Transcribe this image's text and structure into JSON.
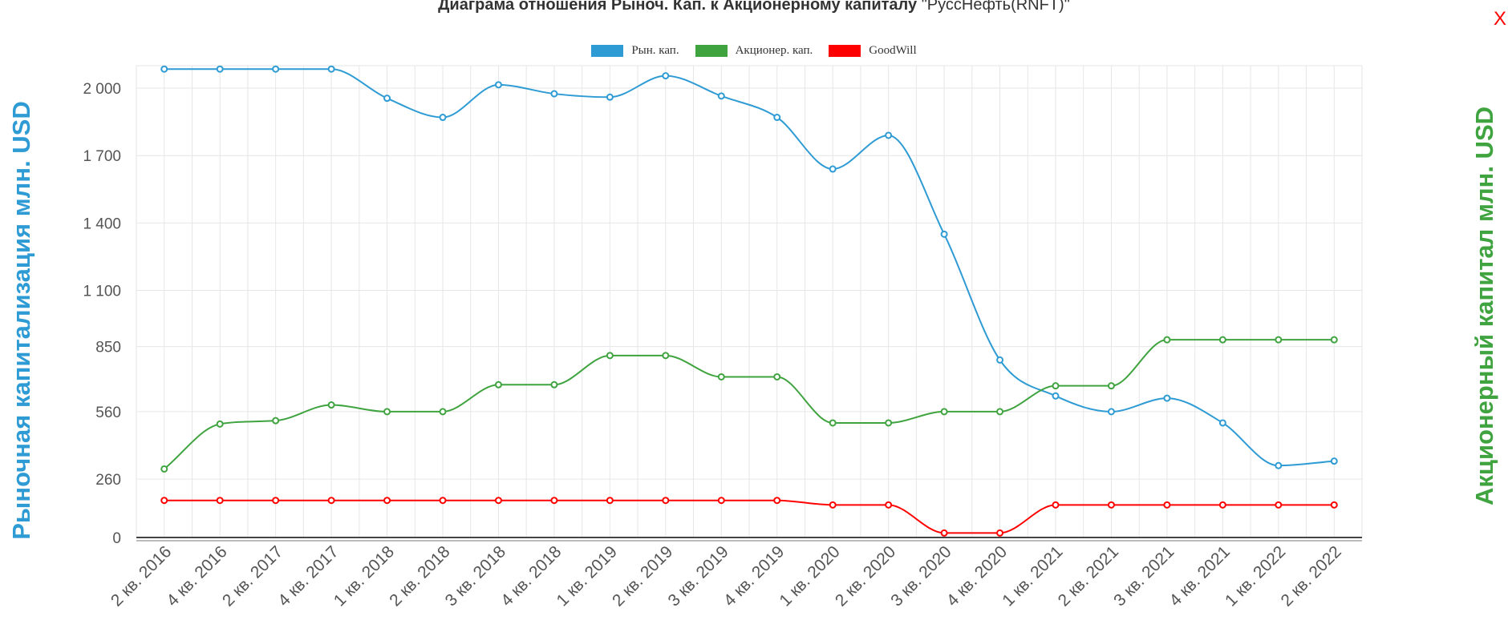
{
  "title": {
    "bold": "Диаграма отношения Рыноч. Кап. к Акционерному капиталу",
    "normal": "\"РуссНефть(RNFT)\""
  },
  "close_label": "X",
  "chart_data": {
    "type": "line",
    "x_labels": [
      "2 кв. 2016",
      "4 кв. 2016",
      "2 кв. 2017",
      "4 кв. 2017",
      "1 кв. 2018",
      "2 кв. 2018",
      "3 кв. 2018",
      "4 кв. 2018",
      "1 кв. 2019",
      "2 кв. 2019",
      "3 кв. 2019",
      "4 кв. 2019",
      "1 кв. 2020",
      "2 кв. 2020",
      "3 кв. 2020",
      "4 кв. 2020",
      "1 кв. 2021",
      "2 кв. 2021",
      "3 кв. 2021",
      "4 кв. 2021",
      "1 кв. 2022",
      "2 кв. 2022"
    ],
    "y_ticks": [
      0,
      260,
      560,
      850,
      1100,
      1400,
      1700,
      2000
    ],
    "y_tick_labels": [
      "0",
      "260",
      "560",
      "850",
      "1 100",
      "1 400",
      "1 700",
      "2 000"
    ],
    "ylim": [
      0,
      2100
    ],
    "ylabel_left": "Рыночная капитализация млн. USD",
    "ylabel_right": "Акционерный капитал млн. USD",
    "legend_position": "top-center",
    "grid": true,
    "series": [
      {
        "name": "Рын. кап.",
        "color": "#2E9BD4",
        "values": [
          2085,
          2085,
          2085,
          2085,
          1955,
          1870,
          2015,
          1975,
          1960,
          2055,
          1965,
          1870,
          1640,
          1790,
          1350,
          790,
          630,
          560,
          620,
          510,
          320,
          340
        ]
      },
      {
        "name": "Акционер. кап.",
        "color": "#3FA33F",
        "values": [
          305,
          505,
          520,
          590,
          560,
          560,
          680,
          680,
          810,
          810,
          715,
          715,
          510,
          510,
          560,
          560,
          675,
          675,
          880,
          880,
          880,
          880
        ]
      },
      {
        "name": "GoodWill",
        "color": "#ff0000",
        "values": [
          165,
          165,
          165,
          165,
          165,
          165,
          165,
          165,
          165,
          165,
          165,
          165,
          145,
          145,
          20,
          20,
          145,
          145,
          145,
          145,
          145,
          145
        ]
      }
    ]
  }
}
